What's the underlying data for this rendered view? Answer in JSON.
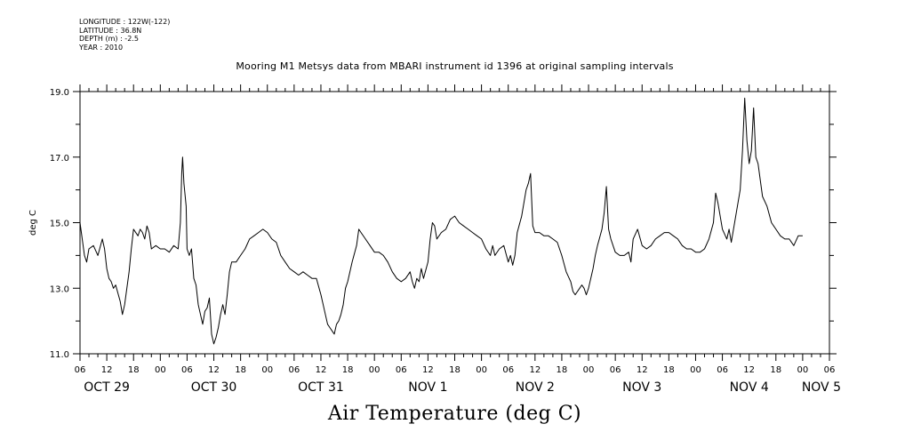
{
  "header": {
    "longitude": "LONGITUDE : 122W(-122)",
    "latitude": "LATITUDE : 36.8N",
    "depth": "DEPTH (m) : -2.5",
    "year": "YEAR : 2010"
  },
  "chart_data": {
    "type": "line",
    "title": "Mooring M1 Metsys data from MBARI instrument id 1396 at original sampling intervals",
    "variable_title": "Air Temperature (deg C)",
    "ylabel": "deg C",
    "ylim": [
      11.0,
      19.0
    ],
    "y_ticks": [
      "11.0",
      "13.0",
      "15.0",
      "17.0",
      "19.0"
    ],
    "xlim_hours": [
      0,
      168
    ],
    "x_hour_ticks": [
      "06",
      "12",
      "18",
      "00",
      "06",
      "12",
      "18",
      "00",
      "06",
      "12",
      "18",
      "00",
      "06",
      "12",
      "18",
      "00",
      "06",
      "12",
      "18",
      "00",
      "06",
      "12",
      "18",
      "00",
      "06",
      "12",
      "18",
      "00",
      "06"
    ],
    "x_day_labels": [
      {
        "label": "OCT 29",
        "hour": 6
      },
      {
        "label": "OCT 30",
        "hour": 30
      },
      {
        "label": "OCT 31",
        "hour": 54
      },
      {
        "label": "NOV  1",
        "hour": 78
      },
      {
        "label": "NOV  2",
        "hour": 102
      },
      {
        "label": "NOV  3",
        "hour": 126
      },
      {
        "label": "NOV  4",
        "hour": 150
      },
      {
        "label": "NOV 5",
        "hour": 168
      }
    ],
    "grid": false,
    "series": [
      {
        "points": [
          [
            0,
            15.0
          ],
          [
            0.5,
            14.5
          ],
          [
            1.0,
            14.0
          ],
          [
            1.5,
            13.8
          ],
          [
            2.0,
            14.2
          ],
          [
            3.0,
            14.3
          ],
          [
            4.0,
            14.0
          ],
          [
            5.0,
            14.5
          ],
          [
            5.5,
            14.2
          ],
          [
            6.0,
            13.6
          ],
          [
            6.5,
            13.3
          ],
          [
            7.0,
            13.2
          ],
          [
            7.5,
            13.0
          ],
          [
            8.0,
            13.1
          ],
          [
            9.0,
            12.6
          ],
          [
            9.5,
            12.2
          ],
          [
            10.0,
            12.5
          ],
          [
            11.0,
            13.5
          ],
          [
            11.5,
            14.2
          ],
          [
            12.0,
            14.8
          ],
          [
            13.0,
            14.6
          ],
          [
            13.5,
            14.8
          ],
          [
            14.0,
            14.7
          ],
          [
            14.5,
            14.5
          ],
          [
            15.0,
            14.9
          ],
          [
            15.5,
            14.7
          ],
          [
            16.0,
            14.2
          ],
          [
            17.0,
            14.3
          ],
          [
            18.0,
            14.2
          ],
          [
            19.0,
            14.2
          ],
          [
            20.0,
            14.1
          ],
          [
            21.0,
            14.3
          ],
          [
            22.0,
            14.2
          ],
          [
            22.5,
            15.0
          ],
          [
            22.8,
            16.5
          ],
          [
            23.0,
            17.0
          ],
          [
            23.3,
            16.2
          ],
          [
            23.8,
            15.5
          ],
          [
            24.0,
            14.2
          ],
          [
            24.5,
            14.0
          ],
          [
            25.0,
            14.2
          ],
          [
            25.5,
            13.3
          ],
          [
            26.0,
            13.1
          ],
          [
            26.5,
            12.5
          ],
          [
            27.0,
            12.2
          ],
          [
            27.5,
            11.9
          ],
          [
            28.0,
            12.3
          ],
          [
            28.5,
            12.4
          ],
          [
            29.0,
            12.7
          ],
          [
            29.5,
            11.6
          ],
          [
            30.0,
            11.3
          ],
          [
            30.5,
            11.5
          ],
          [
            31.0,
            11.8
          ],
          [
            31.5,
            12.2
          ],
          [
            32.0,
            12.5
          ],
          [
            32.5,
            12.2
          ],
          [
            33.0,
            12.8
          ],
          [
            33.5,
            13.5
          ],
          [
            34.0,
            13.8
          ],
          [
            35.0,
            13.8
          ],
          [
            36.0,
            14.0
          ],
          [
            37.0,
            14.2
          ],
          [
            38.0,
            14.5
          ],
          [
            39.0,
            14.6
          ],
          [
            40.0,
            14.7
          ],
          [
            41.0,
            14.8
          ],
          [
            42.0,
            14.7
          ],
          [
            43.0,
            14.5
          ],
          [
            44.0,
            14.4
          ],
          [
            45.0,
            14.0
          ],
          [
            46.0,
            13.8
          ],
          [
            47.0,
            13.6
          ],
          [
            48.0,
            13.5
          ],
          [
            49.0,
            13.4
          ],
          [
            50.0,
            13.5
          ],
          [
            51.0,
            13.4
          ],
          [
            52.0,
            13.3
          ],
          [
            53.0,
            13.3
          ],
          [
            54.0,
            12.8
          ],
          [
            54.5,
            12.5
          ],
          [
            55.0,
            12.2
          ],
          [
            55.5,
            11.9
          ],
          [
            56.0,
            11.8
          ],
          [
            56.5,
            11.7
          ],
          [
            57.0,
            11.6
          ],
          [
            57.5,
            11.9
          ],
          [
            58.0,
            12.0
          ],
          [
            58.5,
            12.2
          ],
          [
            59.0,
            12.5
          ],
          [
            59.5,
            13.0
          ],
          [
            60.0,
            13.2
          ],
          [
            61.0,
            13.8
          ],
          [
            62.0,
            14.3
          ],
          [
            62.5,
            14.8
          ],
          [
            63.0,
            14.7
          ],
          [
            64.0,
            14.5
          ],
          [
            65.0,
            14.3
          ],
          [
            66.0,
            14.1
          ],
          [
            67.0,
            14.1
          ],
          [
            68.0,
            14.0
          ],
          [
            69.0,
            13.8
          ],
          [
            70.0,
            13.5
          ],
          [
            71.0,
            13.3
          ],
          [
            72.0,
            13.2
          ],
          [
            73.0,
            13.3
          ],
          [
            74.0,
            13.5
          ],
          [
            74.5,
            13.2
          ],
          [
            75.0,
            13.0
          ],
          [
            75.5,
            13.3
          ],
          [
            76.0,
            13.2
          ],
          [
            76.5,
            13.6
          ],
          [
            77.0,
            13.3
          ],
          [
            78.0,
            13.8
          ],
          [
            78.5,
            14.5
          ],
          [
            79.0,
            15.0
          ],
          [
            79.5,
            14.9
          ],
          [
            80.0,
            14.5
          ],
          [
            81.0,
            14.7
          ],
          [
            82.0,
            14.8
          ],
          [
            83.0,
            15.1
          ],
          [
            84.0,
            15.2
          ],
          [
            85.0,
            15.0
          ],
          [
            86.0,
            14.9
          ],
          [
            87.0,
            14.8
          ],
          [
            88.0,
            14.7
          ],
          [
            89.0,
            14.6
          ],
          [
            90.0,
            14.5
          ],
          [
            91.0,
            14.2
          ],
          [
            92.0,
            14.0
          ],
          [
            92.5,
            14.3
          ],
          [
            93.0,
            14.0
          ],
          [
            94.0,
            14.2
          ],
          [
            95.0,
            14.3
          ],
          [
            96.0,
            13.8
          ],
          [
            96.5,
            14.0
          ],
          [
            97.0,
            13.7
          ],
          [
            97.5,
            14.0
          ],
          [
            98.0,
            14.7
          ],
          [
            99.0,
            15.2
          ],
          [
            100.0,
            16.0
          ],
          [
            100.5,
            16.2
          ],
          [
            101.0,
            16.5
          ],
          [
            101.5,
            14.9
          ],
          [
            102.0,
            14.7
          ],
          [
            103.0,
            14.7
          ],
          [
            104.0,
            14.6
          ],
          [
            105.0,
            14.6
          ],
          [
            106.0,
            14.5
          ],
          [
            107.0,
            14.4
          ],
          [
            108.0,
            14.0
          ],
          [
            109.0,
            13.5
          ],
          [
            110.0,
            13.2
          ],
          [
            110.5,
            12.9
          ],
          [
            111.0,
            12.8
          ],
          [
            112.0,
            13.0
          ],
          [
            112.5,
            13.1
          ],
          [
            113.0,
            13.0
          ],
          [
            113.5,
            12.8
          ],
          [
            114.0,
            13.0
          ],
          [
            115.0,
            13.6
          ],
          [
            115.5,
            14.0
          ],
          [
            116.0,
            14.3
          ],
          [
            117.0,
            14.8
          ],
          [
            117.5,
            15.3
          ],
          [
            118.0,
            16.1
          ],
          [
            118.5,
            14.8
          ],
          [
            119.0,
            14.5
          ],
          [
            120.0,
            14.1
          ],
          [
            121.0,
            14.0
          ],
          [
            122.0,
            14.0
          ],
          [
            123.0,
            14.1
          ],
          [
            123.5,
            13.8
          ],
          [
            124.0,
            14.5
          ],
          [
            125.0,
            14.8
          ],
          [
            126.0,
            14.3
          ],
          [
            127.0,
            14.2
          ],
          [
            128.0,
            14.3
          ],
          [
            129.0,
            14.5
          ],
          [
            130.0,
            14.6
          ],
          [
            131.0,
            14.7
          ],
          [
            132.0,
            14.7
          ],
          [
            133.0,
            14.6
          ],
          [
            134.0,
            14.5
          ],
          [
            135.0,
            14.3
          ],
          [
            136.0,
            14.2
          ],
          [
            137.0,
            14.2
          ],
          [
            138.0,
            14.1
          ],
          [
            139.0,
            14.1
          ],
          [
            140.0,
            14.2
          ],
          [
            141.0,
            14.5
          ],
          [
            142.0,
            15.0
          ],
          [
            142.5,
            15.9
          ],
          [
            143.0,
            15.6
          ],
          [
            143.5,
            15.2
          ],
          [
            144.0,
            14.8
          ],
          [
            145.0,
            14.5
          ],
          [
            145.5,
            14.8
          ],
          [
            146.0,
            14.4
          ],
          [
            147.0,
            15.2
          ],
          [
            148.0,
            16.0
          ],
          [
            148.5,
            17.2
          ],
          [
            149.0,
            18.8
          ],
          [
            149.5,
            17.5
          ],
          [
            150.0,
            16.8
          ],
          [
            150.5,
            17.2
          ],
          [
            151.0,
            18.5
          ],
          [
            151.5,
            17.0
          ],
          [
            152.0,
            16.8
          ],
          [
            153.0,
            15.8
          ],
          [
            154.0,
            15.5
          ],
          [
            155.0,
            15.0
          ],
          [
            156.0,
            14.8
          ],
          [
            157.0,
            14.6
          ],
          [
            158.0,
            14.5
          ],
          [
            159.0,
            14.5
          ],
          [
            160.0,
            14.3
          ],
          [
            161.0,
            14.6
          ],
          [
            162.0,
            14.6
          ]
        ]
      }
    ]
  }
}
